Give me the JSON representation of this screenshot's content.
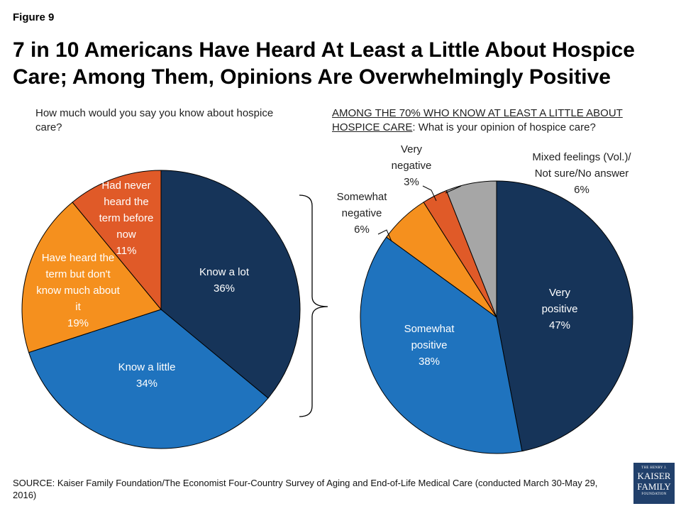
{
  "figure_label": "Figure 9",
  "title": "7 in 10 Americans Have Heard At Least a Little About Hospice Care; Among Them, Opinions Are Overwhelmingly Positive",
  "left_question": "How much would you say you know about hospice care?",
  "right_question_underlined": "AMONG THE 70% WHO KNOW AT LEAST A LITTLE ABOUT HOSPICE CARE",
  "right_question_rest": ": What is your opinion of hospice care?",
  "chart_data": [
    {
      "type": "pie",
      "slices": [
        {
          "label": "Know a lot",
          "value": 36,
          "value_label": "36%",
          "color": "#163459",
          "text_color": "#ffffff"
        },
        {
          "label": "Know a little",
          "value": 34,
          "value_label": "34%",
          "color": "#1f73be",
          "text_color": "#ffffff"
        },
        {
          "label": "Have heard the term but don't know much about it",
          "value": 19,
          "value_label": "19%",
          "color": "#f5901e",
          "text_color": "#ffffff"
        },
        {
          "label": "Had never heard the term before now",
          "value": 11,
          "value_label": "11%",
          "color": "#e05a28",
          "text_color": "#ffffff"
        }
      ]
    },
    {
      "type": "pie",
      "slices": [
        {
          "label": "Very positive",
          "value": 47,
          "value_label": "47%",
          "color": "#163459",
          "text_color": "#ffffff"
        },
        {
          "label": "Somewhat positive",
          "value": 38,
          "value_label": "38%",
          "color": "#1f73be",
          "text_color": "#ffffff"
        },
        {
          "label": "Somewhat negative",
          "value": 6,
          "value_label": "6%",
          "color": "#f5901e",
          "text_color": "#222222"
        },
        {
          "label": "Very negative",
          "value": 3,
          "value_label": "3%",
          "color": "#e05a28",
          "text_color": "#222222"
        },
        {
          "label": "Mixed feelings (Vol.)/ Not sure/No answer",
          "value": 6,
          "value_label": "6%",
          "color": "#a6a6a6",
          "text_color": "#222222"
        }
      ]
    }
  ],
  "source": "SOURCE: Kaiser Family Foundation/The Economist Four-Country Survey of Aging and End-of-Life Medical Care (conducted March 30-May 29, 2016)",
  "logo": {
    "line1": "THE HENRY J.",
    "line2": "KAISER",
    "line3": "FAMILY",
    "line4": "FOUNDATION"
  }
}
